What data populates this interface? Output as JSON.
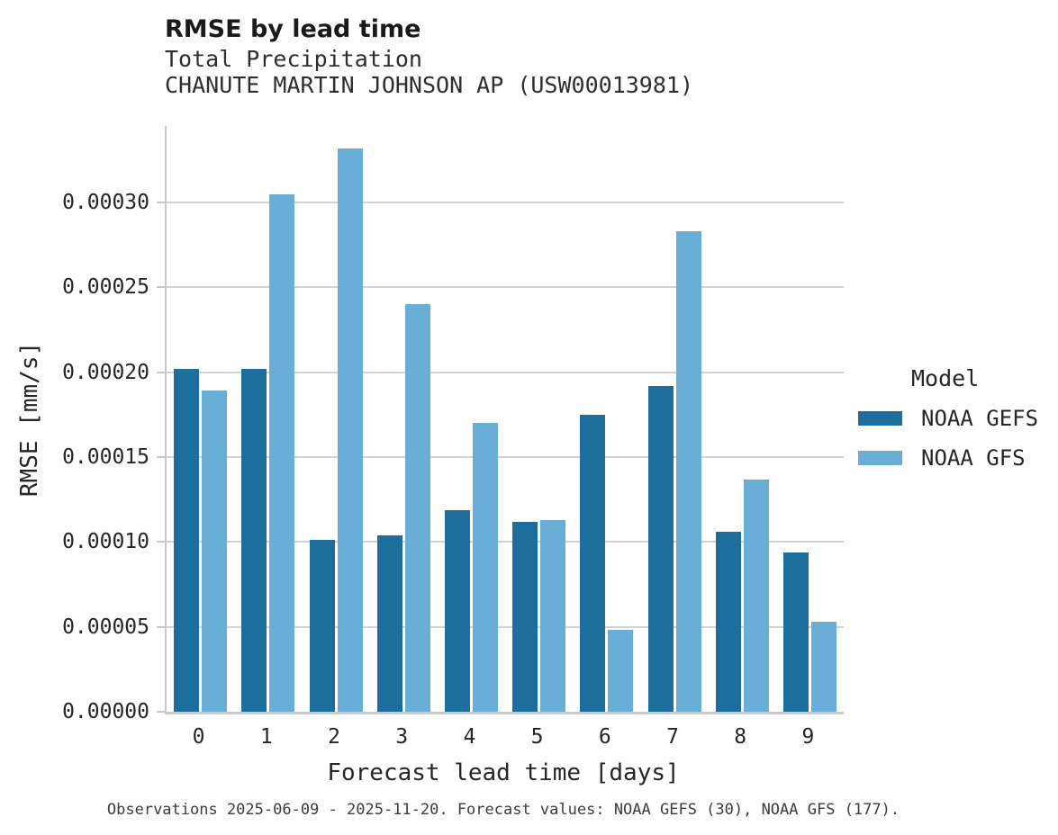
{
  "title": "RMSE by lead time",
  "subtitle_line1": "Total Precipitation",
  "subtitle_line2": "CHANUTE MARTIN JOHNSON AP (USW00013981)",
  "footer": "Observations 2025-06-09 - 2025-11-20. Forecast values: NOAA GEFS (30), NOAA GFS (177).",
  "legend": {
    "title": "Model",
    "entries": [
      {
        "label": "NOAA GEFS",
        "color": "#1d6e9d"
      },
      {
        "label": "NOAA GFS",
        "color": "#69aed6"
      }
    ]
  },
  "colors": {
    "gefs_bar": "#1d6e9d",
    "gfs_bar": "#69aed6",
    "gridline": "#d2d2d2",
    "spine": "#c9c9c9",
    "text": "#262626"
  },
  "chart_data": {
    "type": "bar",
    "title": "RMSE by lead time",
    "subtitle": [
      "Total Precipitation",
      "CHANUTE MARTIN JOHNSON AP (USW00013981)"
    ],
    "xlabel": "Forecast lead time [days]",
    "ylabel": "RMSE [mm/s]",
    "categories": [
      "0",
      "1",
      "2",
      "3",
      "4",
      "5",
      "6",
      "7",
      "8",
      "9"
    ],
    "series": [
      {
        "name": "NOAA GEFS",
        "color": "#1d6e9d",
        "values": [
          0.000202,
          0.000202,
          0.000101,
          0.000104,
          0.000119,
          0.000112,
          0.000175,
          0.000192,
          0.000106,
          9.4e-05
        ]
      },
      {
        "name": "NOAA GFS",
        "color": "#69aed6",
        "values": [
          0.000189,
          0.000305,
          0.000332,
          0.00024,
          0.00017,
          0.000113,
          4.8e-05,
          0.000283,
          0.000137,
          5.3e-05
        ]
      }
    ],
    "ylim": [
      0,
      0.000345
    ],
    "yticks": [
      0,
      5e-05,
      0.0001,
      0.00015,
      0.0002,
      0.00025,
      0.0003
    ],
    "ytick_labels": [
      "0.00000",
      "0.00005",
      "0.00010",
      "0.00015",
      "0.00020",
      "0.00025",
      "0.00030"
    ],
    "grid": true,
    "legend_title": "Model",
    "legend_position": "right",
    "footnote": "Observations 2025-06-09 - 2025-11-20. Forecast values: NOAA GEFS (30), NOAA GFS (177)."
  }
}
